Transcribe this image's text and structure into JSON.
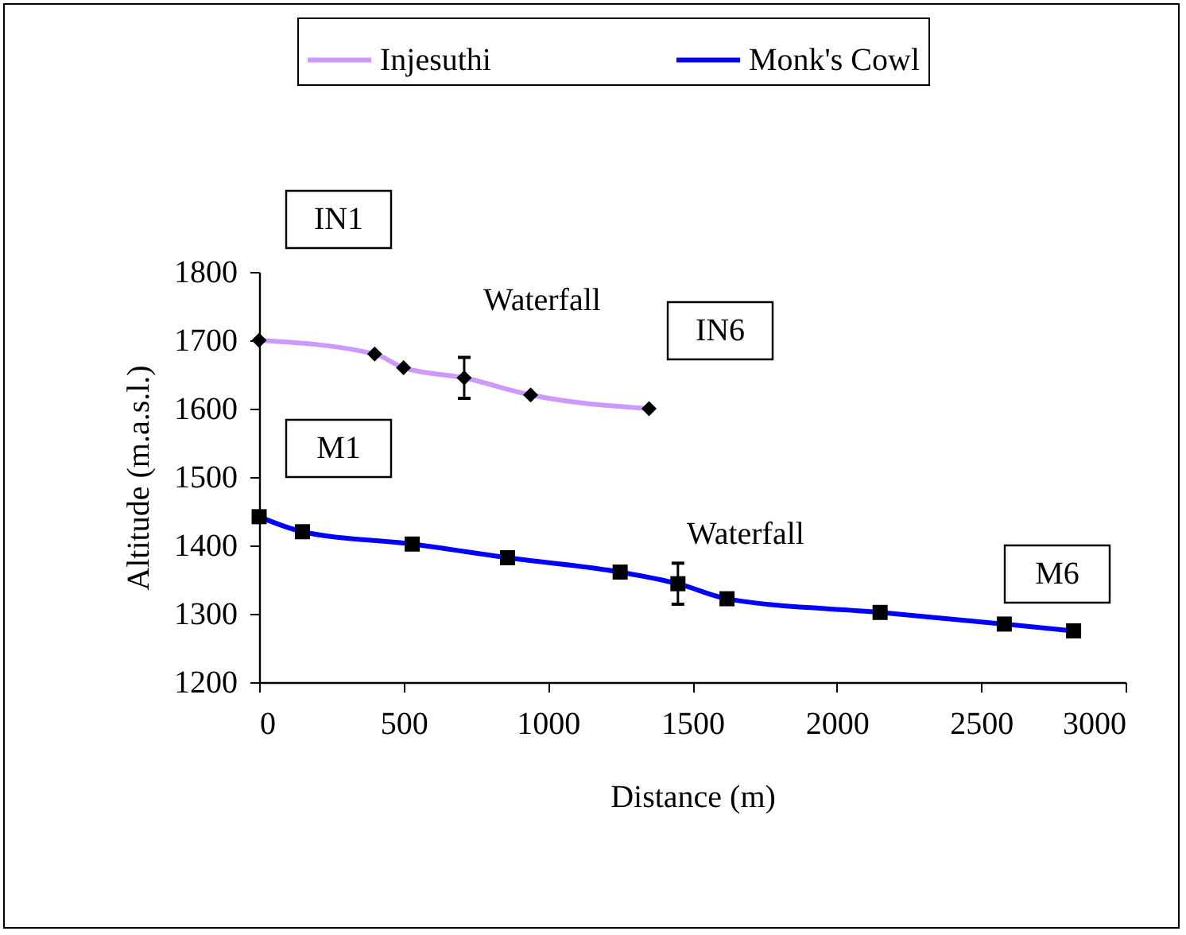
{
  "chart_data": {
    "type": "line",
    "xlabel": "Distance (m)",
    "ylabel": "Altitude (m.a.s.l.)",
    "xlim": [
      0,
      3000
    ],
    "xticks": [
      0,
      500,
      1000,
      1500,
      2000,
      2500,
      3000
    ],
    "ylim": [
      1200,
      1800
    ],
    "yticks": [
      1200,
      1300,
      1400,
      1500,
      1600,
      1700,
      1800
    ],
    "grid": false,
    "legend": "top",
    "line_style": "solid",
    "series": [
      {
        "name": "Injesuthi",
        "color": "#cc99ff",
        "marker": "diamond",
        "x": [
          0,
          400,
          500,
          710,
          940,
          1350
        ],
        "values": [
          1700,
          1680,
          1660,
          1645,
          1620,
          1600
        ],
        "errors": [
          null,
          null,
          null,
          30,
          null,
          null
        ]
      },
      {
        "name": "Monk's Cowl",
        "color": "#0000ff",
        "marker": "square",
        "x": [
          0,
          150,
          530,
          860,
          1250,
          1450,
          1620,
          2150,
          2580,
          2820
        ],
        "values": [
          1442,
          1420,
          1402,
          1382,
          1361,
          1344,
          1322,
          1302,
          1285,
          1275
        ],
        "errors": [
          null,
          null,
          null,
          null,
          null,
          30,
          null,
          null,
          null,
          null
        ]
      }
    ],
    "annotations": [
      "IN1",
      "Waterfall",
      "IN6",
      "M1",
      "Waterfall",
      "M6"
    ]
  }
}
